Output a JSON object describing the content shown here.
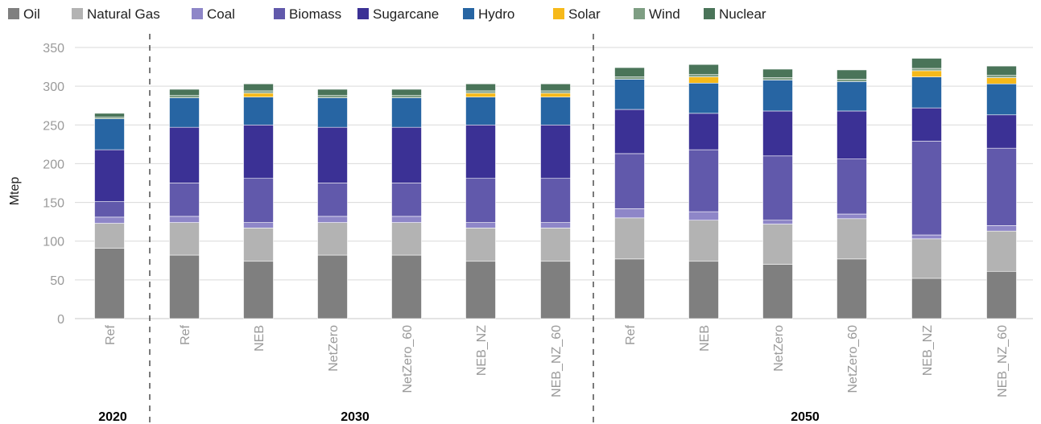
{
  "chart_data": {
    "type": "bar",
    "stacked": true,
    "title": "",
    "xlabel": "",
    "ylabel": "Mtep",
    "ylim": [
      0,
      350
    ],
    "yticks": [
      0,
      50,
      100,
      150,
      200,
      250,
      300,
      350
    ],
    "grid": true,
    "legend_position": "top-left",
    "categories": [
      "Ref",
      "Ref",
      "NEB",
      "NetZero",
      "NetZero_60",
      "NEB_NZ",
      "NEB_NZ_60",
      "Ref",
      "NEB",
      "NetZero",
      "NetZero_60",
      "NEB_NZ",
      "NEB_NZ_60"
    ],
    "groups": [
      {
        "label": "2020",
        "start": 0,
        "end": 0
      },
      {
        "label": "2030",
        "start": 1,
        "end": 6
      },
      {
        "label": "2050",
        "start": 7,
        "end": 12
      }
    ],
    "series": [
      {
        "name": "Oil",
        "color": "#7f7f7f",
        "values": [
          91,
          82,
          74,
          82,
          82,
          74,
          74,
          77,
          74,
          70,
          77,
          52,
          61
        ]
      },
      {
        "name": "Natural Gas",
        "color": "#b3b3b3",
        "values": [
          32,
          42,
          43,
          42,
          42,
          43,
          43,
          53,
          53,
          52,
          52,
          51,
          52
        ]
      },
      {
        "name": "Coal",
        "color": "#8e86c8",
        "values": [
          8,
          8,
          7,
          8,
          8,
          7,
          7,
          12,
          11,
          5,
          6,
          5,
          7
        ]
      },
      {
        "name": "Biomass",
        "color": "#6159ab",
        "values": [
          20,
          43,
          57,
          43,
          43,
          57,
          57,
          71,
          80,
          83,
          71,
          121,
          100
        ]
      },
      {
        "name": "Sugarcane",
        "color": "#3b3195",
        "values": [
          67,
          72,
          69,
          72,
          72,
          69,
          69,
          57,
          47,
          58,
          62,
          43,
          43
        ]
      },
      {
        "name": "Hydro",
        "color": "#2765a3",
        "values": [
          40,
          38,
          36,
          38,
          38,
          36,
          36,
          39,
          39,
          40,
          38,
          40,
          40
        ]
      },
      {
        "name": "Solar",
        "color": "#f6b91a",
        "values": [
          0,
          0,
          5,
          0,
          0,
          5,
          5,
          0,
          8,
          0,
          0,
          8,
          8
        ]
      },
      {
        "name": "Wind",
        "color": "#7e9e83",
        "values": [
          2,
          3,
          3,
          3,
          3,
          3,
          3,
          3,
          3,
          3,
          3,
          3,
          3
        ]
      },
      {
        "name": "Nuclear",
        "color": "#4a7459",
        "values": [
          5,
          8,
          9,
          8,
          8,
          9,
          9,
          12,
          13,
          11,
          12,
          13,
          12
        ]
      }
    ]
  }
}
